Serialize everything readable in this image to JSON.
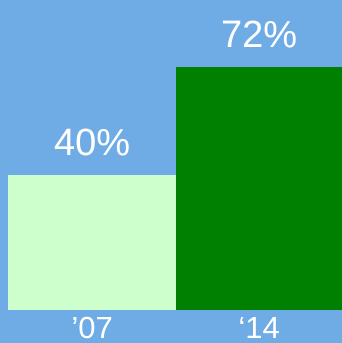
{
  "chart_data": {
    "type": "bar",
    "categories": [
      "’07",
      "‘14"
    ],
    "values": [
      40,
      72
    ],
    "value_labels": [
      "40%",
      "72%"
    ],
    "colors": [
      "#ccffcc",
      "#008000"
    ],
    "background": "#6fabe4",
    "title": "",
    "xlabel": "",
    "ylabel": "",
    "ylim": [
      0,
      100
    ],
    "grid": false,
    "legend": "none"
  }
}
